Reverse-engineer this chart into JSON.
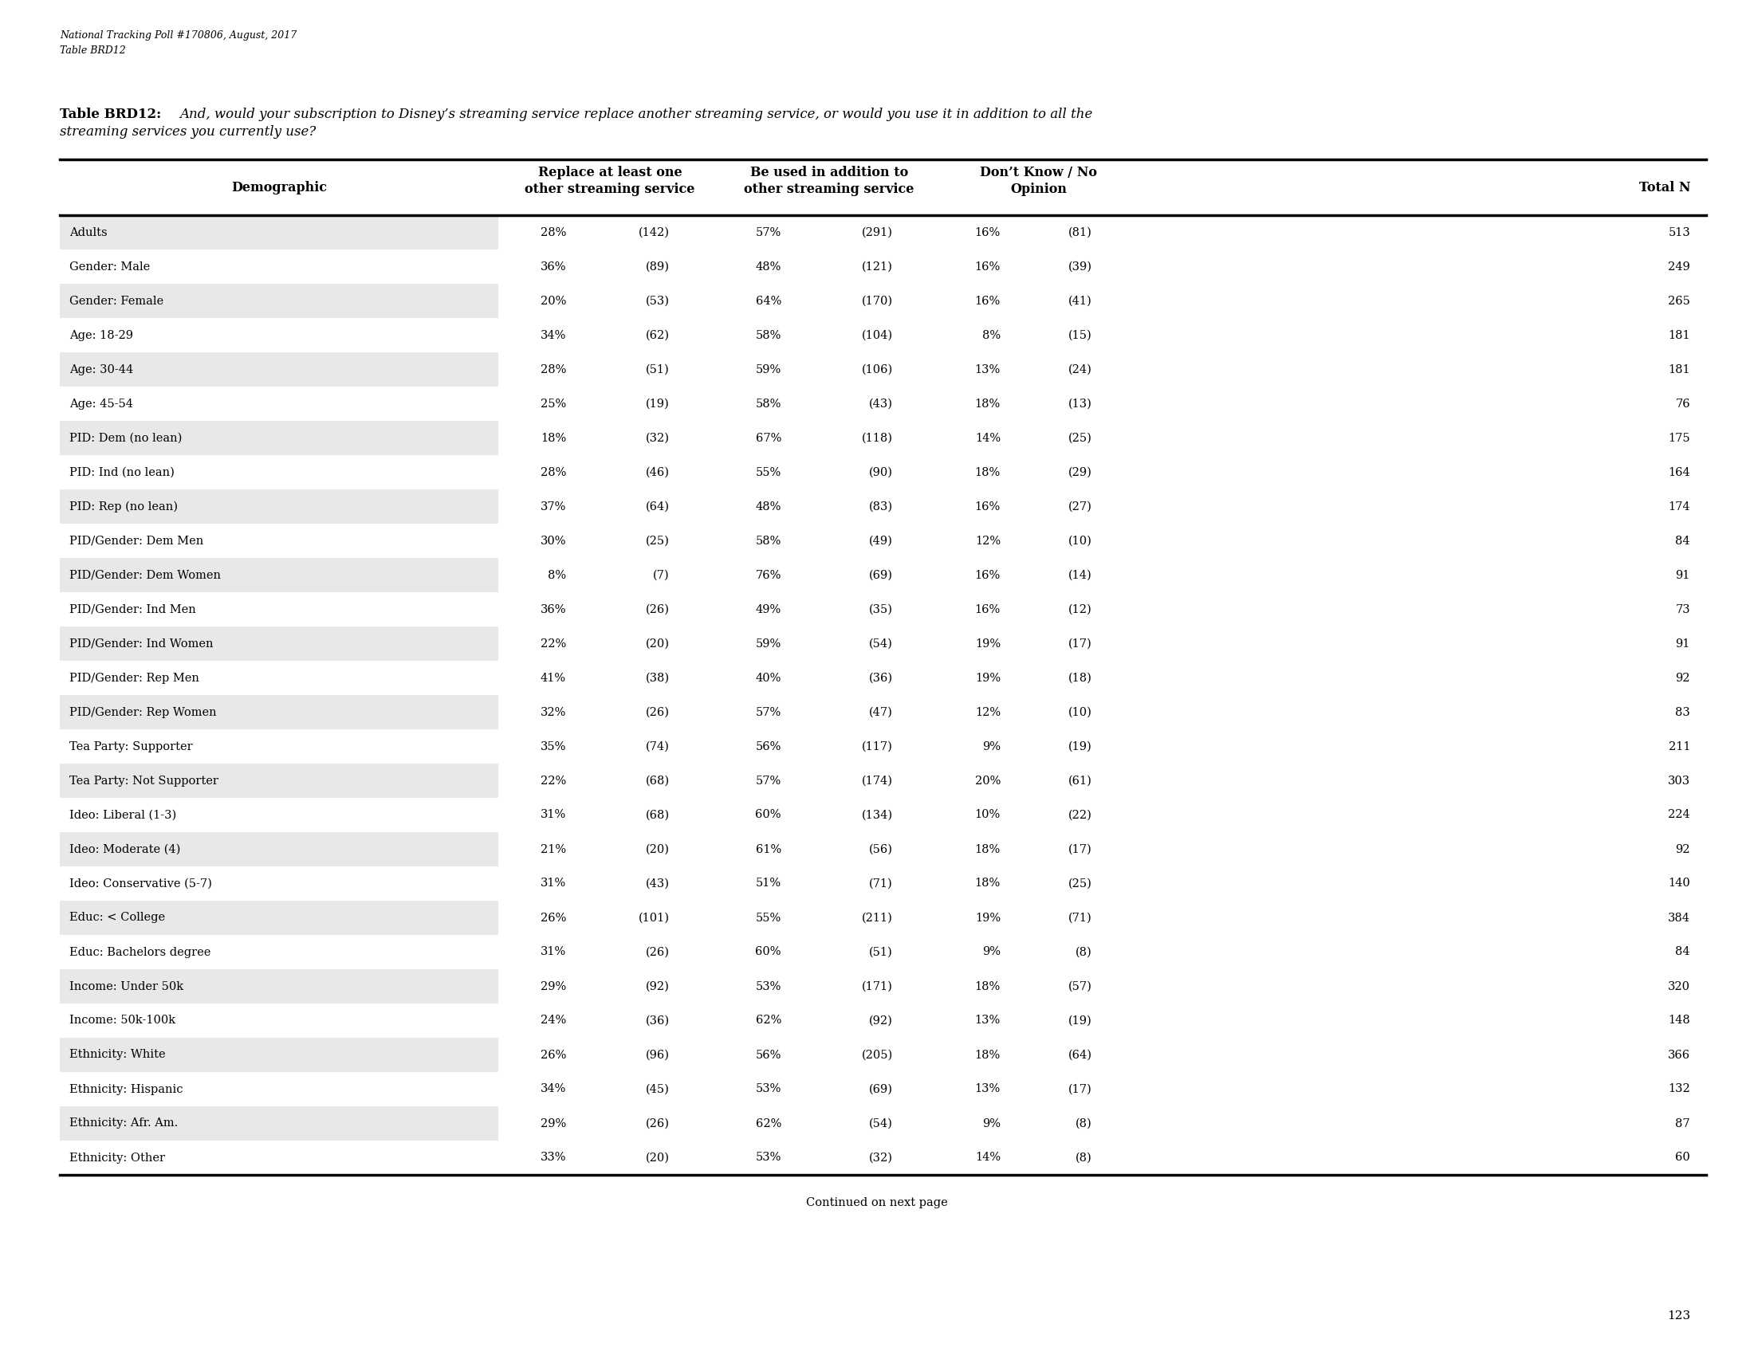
{
  "header_line1": "National Tracking Poll #170806, August, 2017",
  "header_line2": "Table BRD12",
  "title_bold": "Table BRD12:",
  "title_italic": " And, would your subscription to Disney’s streaming service replace another streaming service, or would you use it in addition to all the\nstreaming services you currently use?",
  "col_header_labels": [
    "Demographic",
    "Replace at least one\nother streaming service",
    "Be used in addition to\nother streaming service",
    "Don’t Know / No\nOpinion",
    "Total N"
  ],
  "rows": [
    [
      "Adults",
      "28%",
      "(142)",
      "57%",
      "(291)",
      "16%",
      "(81)",
      "513"
    ],
    [
      "Gender: Male",
      "36%",
      "(89)",
      "48%",
      "(121)",
      "16%",
      "(39)",
      "249"
    ],
    [
      "Gender: Female",
      "20%",
      "(53)",
      "64%",
      "(170)",
      "16%",
      "(41)",
      "265"
    ],
    [
      "Age: 18-29",
      "34%",
      "(62)",
      "58%",
      "(104)",
      "8%",
      "(15)",
      "181"
    ],
    [
      "Age: 30-44",
      "28%",
      "(51)",
      "59%",
      "(106)",
      "13%",
      "(24)",
      "181"
    ],
    [
      "Age: 45-54",
      "25%",
      "(19)",
      "58%",
      "(43)",
      "18%",
      "(13)",
      "76"
    ],
    [
      "PID: Dem (no lean)",
      "18%",
      "(32)",
      "67%",
      "(118)",
      "14%",
      "(25)",
      "175"
    ],
    [
      "PID: Ind (no lean)",
      "28%",
      "(46)",
      "55%",
      "(90)",
      "18%",
      "(29)",
      "164"
    ],
    [
      "PID: Rep (no lean)",
      "37%",
      "(64)",
      "48%",
      "(83)",
      "16%",
      "(27)",
      "174"
    ],
    [
      "PID/Gender: Dem Men",
      "30%",
      "(25)",
      "58%",
      "(49)",
      "12%",
      "(10)",
      "84"
    ],
    [
      "PID/Gender: Dem Women",
      "8%",
      "(7)",
      "76%",
      "(69)",
      "16%",
      "(14)",
      "91"
    ],
    [
      "PID/Gender: Ind Men",
      "36%",
      "(26)",
      "49%",
      "(35)",
      "16%",
      "(12)",
      "73"
    ],
    [
      "PID/Gender: Ind Women",
      "22%",
      "(20)",
      "59%",
      "(54)",
      "19%",
      "(17)",
      "91"
    ],
    [
      "PID/Gender: Rep Men",
      "41%",
      "(38)",
      "40%",
      "(36)",
      "19%",
      "(18)",
      "92"
    ],
    [
      "PID/Gender: Rep Women",
      "32%",
      "(26)",
      "57%",
      "(47)",
      "12%",
      "(10)",
      "83"
    ],
    [
      "Tea Party: Supporter",
      "35%",
      "(74)",
      "56%",
      "(117)",
      "9%",
      "(19)",
      "211"
    ],
    [
      "Tea Party: Not Supporter",
      "22%",
      "(68)",
      "57%",
      "(174)",
      "20%",
      "(61)",
      "303"
    ],
    [
      "Ideo: Liberal (1-3)",
      "31%",
      "(68)",
      "60%",
      "(134)",
      "10%",
      "(22)",
      "224"
    ],
    [
      "Ideo: Moderate (4)",
      "21%",
      "(20)",
      "61%",
      "(56)",
      "18%",
      "(17)",
      "92"
    ],
    [
      "Ideo: Conservative (5-7)",
      "31%",
      "(43)",
      "51%",
      "(71)",
      "18%",
      "(25)",
      "140"
    ],
    [
      "Educ: < College",
      "26%",
      "(101)",
      "55%",
      "(211)",
      "19%",
      "(71)",
      "384"
    ],
    [
      "Educ: Bachelors degree",
      "31%",
      "(26)",
      "60%",
      "(51)",
      "9%",
      "(8)",
      "84"
    ],
    [
      "Income: Under 50k",
      "29%",
      "(92)",
      "53%",
      "(171)",
      "18%",
      "(57)",
      "320"
    ],
    [
      "Income: 50k-100k",
      "24%",
      "(36)",
      "62%",
      "(92)",
      "13%",
      "(19)",
      "148"
    ],
    [
      "Ethnicity: White",
      "26%",
      "(96)",
      "56%",
      "(205)",
      "18%",
      "(64)",
      "366"
    ],
    [
      "Ethnicity: Hispanic",
      "34%",
      "(45)",
      "53%",
      "(69)",
      "13%",
      "(17)",
      "132"
    ],
    [
      "Ethnicity: Afr. Am.",
      "29%",
      "(26)",
      "62%",
      "(54)",
      "9%",
      "(8)",
      "87"
    ],
    [
      "Ethnicity: Other",
      "33%",
      "(20)",
      "53%",
      "(32)",
      "14%",
      "(8)",
      "60"
    ]
  ],
  "footer": "Continued on next page",
  "page_number": "123",
  "bg_color_shaded": "#e8e8e8",
  "bg_color_white": "#ffffff"
}
